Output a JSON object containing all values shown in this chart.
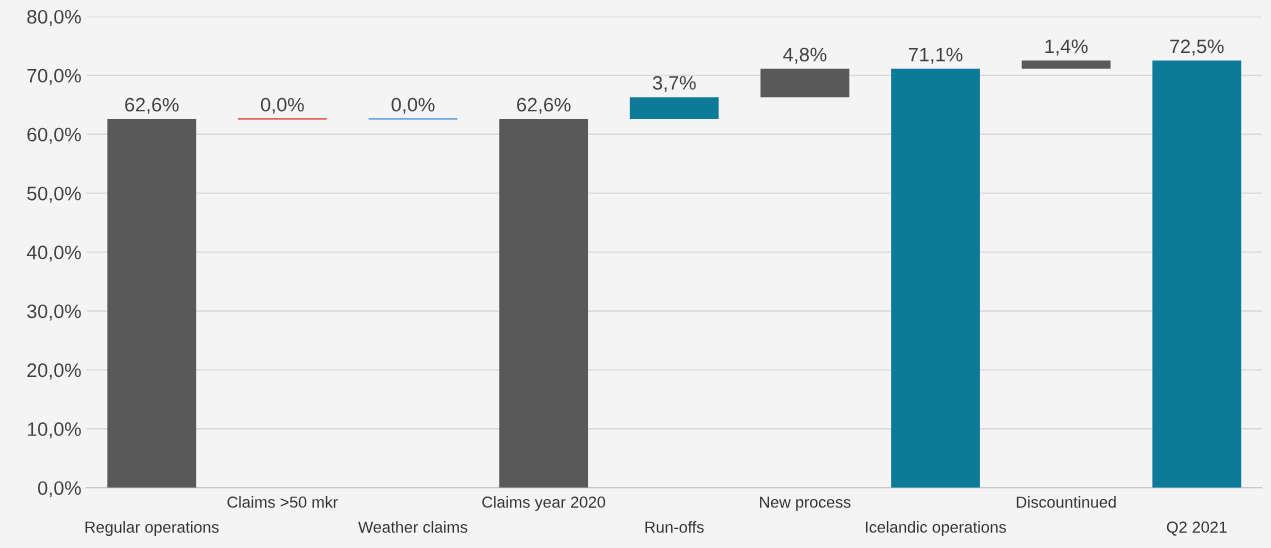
{
  "chart_data": {
    "type": "bar",
    "categories": [
      "Regular operations",
      "Claims >50 mkr",
      "Weather claims",
      "Claims year 2020",
      "Run-offs",
      "New process",
      "Icelandic operations",
      "Discountinued",
      "Q2 2021"
    ],
    "values": [
      62.6,
      0.0,
      0.0,
      62.6,
      3.7,
      4.8,
      71.1,
      1.4,
      72.5
    ],
    "base": [
      0,
      62.6,
      62.6,
      0,
      62.6,
      66.3,
      0,
      71.1,
      0
    ],
    "colors": [
      "#595959",
      "#e06666",
      "#6fa8dc",
      "#595959",
      "#0e7a9a",
      "#595959",
      "#0e7a9a",
      "#595959",
      "#0e7a9a"
    ],
    "value_labels": [
      "62,6%",
      "0,0%",
      "0,0%",
      "62,6%",
      "3,7%",
      "4,8%",
      "71,1%",
      "1,4%",
      "72,5%"
    ],
    "ylim": [
      0,
      80
    ],
    "yticks": [
      {
        "value": 0,
        "label": "0,0%"
      },
      {
        "value": 10,
        "label": "10,0%"
      },
      {
        "value": 20,
        "label": "20,0%"
      },
      {
        "value": 30,
        "label": "30,0%"
      },
      {
        "value": 40,
        "label": "40,0%"
      },
      {
        "value": 50,
        "label": "50,0%"
      },
      {
        "value": 60,
        "label": "60,0%"
      },
      {
        "value": 70,
        "label": "70,0%"
      },
      {
        "value": 80,
        "label": "80,0%"
      }
    ],
    "grid": "y"
  }
}
